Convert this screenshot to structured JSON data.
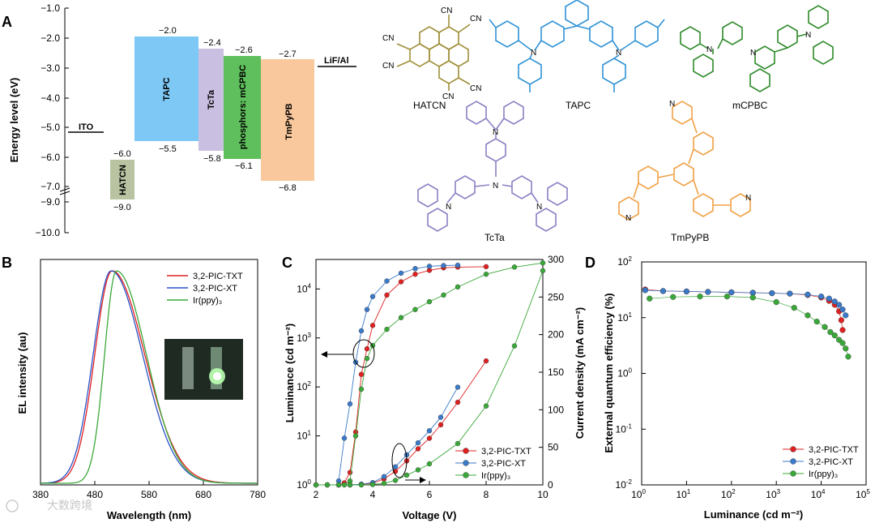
{
  "panels": {
    "A": "A",
    "B": "B",
    "C": "C",
    "D": "D"
  },
  "watermark": "大数跨境",
  "energy_diagram": {
    "ylabel": "Energy level (eV)",
    "yticks": [
      "−1.0",
      "−2.0",
      "−3.0",
      "−4.0",
      "−5.0",
      "−6.0",
      "−7.0",
      "−9.0",
      "−10.0"
    ],
    "lines": [
      {
        "name": "ITO",
        "level": "−5.0"
      },
      {
        "name": "LiF/Al",
        "level": "−2.7"
      }
    ],
    "layers": [
      {
        "name": "HATCN",
        "top": "−6.0",
        "bottom": "−9.0",
        "color": "#b9c3a2"
      },
      {
        "name": "TAPC",
        "top": "−2.0",
        "bottom": "−5.5",
        "color": "#7ec8f5"
      },
      {
        "name": "TcTa",
        "top": "−2.4",
        "bottom": "−5.8",
        "color": "#c9bfe0"
      },
      {
        "name": "phosphors: mCPBC",
        "top": "−2.6",
        "bottom": "−6.1",
        "color": "#5fbf5c"
      },
      {
        "name": "TmPyPB",
        "top": "−2.7",
        "bottom": "−6.8",
        "color": "#f9c89c"
      }
    ],
    "molecules": [
      {
        "name": "HATCN",
        "color": "#a08f3a",
        "cn": "CN"
      },
      {
        "name": "TAPC",
        "color": "#2f93d6"
      },
      {
        "name": "mCPBC",
        "color": "#2f8a2a",
        "n": "N"
      },
      {
        "name": "TcTa",
        "color": "#8a80c2",
        "n": "N"
      },
      {
        "name": "TmPyPB",
        "color": "#f0a145",
        "n": "N"
      }
    ]
  },
  "chart_data": [
    {
      "panel": "B",
      "type": "line",
      "xlabel": "Wavelength (nm)",
      "ylabel": "EL intensity (au)",
      "xlim": [
        380,
        780
      ],
      "xticks": [
        "380",
        "480",
        "580",
        "680",
        "780"
      ],
      "series": [
        {
          "name": "3,2-PIC-TXT",
          "color": "#e02020",
          "peak": 512,
          "width_left": 32,
          "width_right": 60
        },
        {
          "name": "3,2-PIC-XT",
          "color": "#2a52c8",
          "peak": 510,
          "width_left": 33,
          "width_right": 58
        },
        {
          "name": "Ir(ppy)₃",
          "color": "#3aa838",
          "peak": 520,
          "width_left": 22,
          "width_right": 55
        }
      ]
    },
    {
      "panel": "C",
      "type": "line",
      "xlabel": "Voltage (V)",
      "ylabel": "Luminance (cd m⁻²)",
      "y2label": "Current density (mA cm⁻²)",
      "xlim": [
        2,
        10
      ],
      "ylim": [
        1,
        40000
      ],
      "y2lim": [
        0,
        300
      ],
      "xticks": [
        "2",
        "4",
        "6",
        "8",
        "10"
      ],
      "y2ticks": [
        "0",
        "50",
        "100",
        "150",
        "200",
        "250",
        "300"
      ],
      "yscale": "log",
      "luminance": [
        {
          "name": "3,2-PIC-TXT",
          "color": "#e02020",
          "x": [
            2.8,
            3.0,
            3.2,
            3.4,
            3.6,
            3.8,
            4.0,
            4.5,
            5.0,
            5.5,
            6.0,
            6.5,
            7.0,
            8.0
          ],
          "y": [
            1,
            1.1,
            1.8,
            12,
            180,
            600,
            1800,
            7500,
            14000,
            20000,
            24000,
            27000,
            28000,
            28500
          ]
        },
        {
          "name": "3,2-PIC-XT",
          "color": "#3a7ac8",
          "x": [
            2.8,
            3.0,
            3.2,
            3.4,
            3.6,
            3.8,
            4.0,
            4.5,
            5.0,
            5.5,
            6.0,
            6.5,
            7.0
          ],
          "y": [
            1.2,
            9,
            45,
            320,
            1400,
            3800,
            7000,
            14500,
            21000,
            26000,
            29000,
            30000,
            30500
          ]
        },
        {
          "name": "Ir(ppy)₃",
          "color": "#3aa838",
          "x": [
            3.0,
            3.2,
            3.4,
            3.6,
            3.8,
            4.0,
            4.5,
            5.0,
            5.5,
            6.0,
            6.5,
            7.0,
            8.0,
            9.0,
            10.0
          ],
          "y": [
            1,
            1.2,
            10,
            90,
            380,
            700,
            1500,
            2600,
            3800,
            5500,
            7500,
            11000,
            20000,
            28000,
            34000
          ]
        }
      ],
      "current": [
        {
          "name": "3,2-PIC-TXT",
          "color": "#e02020",
          "x": [
            2.0,
            2.4,
            2.8,
            3.2,
            3.6,
            4.0,
            4.4,
            4.8,
            5.2,
            5.6,
            6.0,
            6.4,
            7.0,
            8.0
          ],
          "y": [
            0,
            0,
            0,
            0,
            0.5,
            2,
            8,
            18,
            32,
            48,
            62,
            80,
            110,
            165
          ]
        },
        {
          "name": "3,2-PIC-XT",
          "color": "#3a7ac8",
          "x": [
            2.0,
            2.4,
            2.8,
            3.2,
            3.6,
            4.0,
            4.4,
            4.8,
            5.2,
            5.6,
            6.0,
            6.4,
            7.0
          ],
          "y": [
            0,
            0,
            0,
            0,
            1,
            3,
            11,
            24,
            40,
            56,
            72,
            90,
            130
          ]
        },
        {
          "name": "Ir(ppy)₃",
          "color": "#3aa838",
          "x": [
            2.0,
            2.4,
            2.8,
            3.2,
            3.6,
            4.0,
            4.4,
            4.8,
            5.2,
            5.6,
            6.0,
            7.0,
            8.0,
            9.0,
            10.0
          ],
          "y": [
            0,
            0,
            0,
            0,
            0,
            0.5,
            2,
            6,
            13,
            20,
            28,
            55,
            105,
            185,
            285
          ]
        }
      ]
    },
    {
      "panel": "D",
      "type": "scatter",
      "xlabel": "Luminance (cd m⁻²)",
      "ylabel": "External quantum efficiency (%)",
      "xlim": [
        1,
        100000
      ],
      "ylim": [
        0.01,
        100
      ],
      "xscale": "log",
      "yscale": "log",
      "series": [
        {
          "name": "3,2-PIC-TXT",
          "color": "#e02020",
          "x": [
            1.2,
            3,
            10,
            30,
            100,
            300,
            800,
            2000,
            5000,
            10000,
            15000,
            20000,
            25000,
            28000,
            30000
          ],
          "y": [
            32,
            30,
            29.5,
            29,
            28.5,
            28,
            27.5,
            27,
            25.5,
            23,
            20,
            17,
            13,
            9,
            6
          ]
        },
        {
          "name": "3,2-PIC-XT",
          "color": "#3a7ac8",
          "x": [
            1.2,
            3,
            10,
            30,
            100,
            300,
            800,
            2000,
            5000,
            10000,
            15000,
            20000,
            25000,
            30000,
            35000
          ],
          "y": [
            31,
            30,
            29.5,
            29,
            28.5,
            28,
            27.5,
            27,
            26,
            24,
            22,
            19.5,
            17,
            14,
            11
          ]
        },
        {
          "name": "Ir(ppy)₃",
          "color": "#3aa838",
          "x": [
            1.5,
            5,
            20,
            80,
            300,
            1000,
            2500,
            5000,
            8000,
            12000,
            16000,
            20000,
            25000,
            30000,
            35000,
            40000
          ],
          "y": [
            22,
            23.5,
            24,
            24,
            23,
            19,
            15,
            11,
            8.5,
            6.8,
            5.5,
            4.8,
            4.0,
            3.5,
            2.8,
            2.0
          ]
        }
      ]
    }
  ]
}
